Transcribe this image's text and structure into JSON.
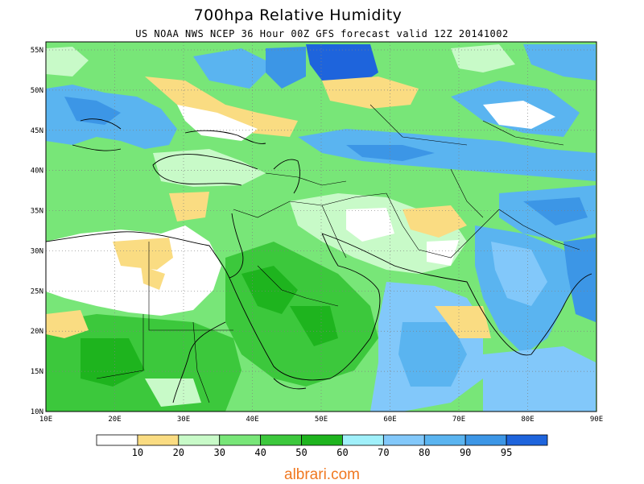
{
  "title": "700hpa Relative Humidity",
  "subtitle": "US NOAA NWS NCEP 36 Hour 00Z GFS forecast valid 12Z 20141002",
  "watermark": "albrari.com",
  "map": {
    "lon_range": [
      10,
      90
    ],
    "lat_range": [
      10,
      56
    ],
    "lon_ticks": [
      "10E",
      "20E",
      "30E",
      "40E",
      "50E",
      "60E",
      "70E",
      "80E",
      "90E"
    ],
    "lat_ticks": [
      "10N",
      "15N",
      "20N",
      "25N",
      "30N",
      "35N",
      "40N",
      "45N",
      "50N",
      "55N"
    ],
    "grid_color": "#808080"
  },
  "legend": {
    "colors": [
      "#ffffff",
      "#fadc82",
      "#c8fac8",
      "#78e678",
      "#3cc83c",
      "#1eb41e",
      "#a0f0fa",
      "#82c8fa",
      "#5ab4f0",
      "#3c96e6",
      "#1e64dc"
    ],
    "labels": [
      "10",
      "20",
      "30",
      "40",
      "50",
      "60",
      "70",
      "80",
      "90",
      "95"
    ]
  }
}
